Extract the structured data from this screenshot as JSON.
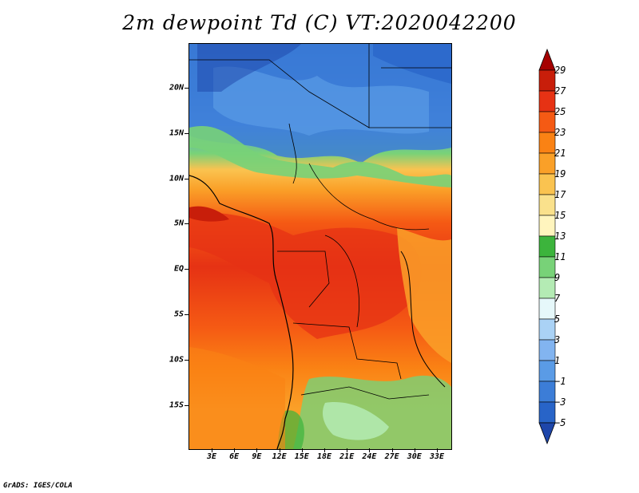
{
  "title": "2m dewpoint Td (C) VT:2020042200",
  "credit": "GrADS: IGES/COLA",
  "lat_labels": [
    "20N",
    "15N",
    "10N",
    "5N",
    "EQ",
    "5S",
    "10S",
    "15S"
  ],
  "lon_labels": [
    "3E",
    "6E",
    "9E",
    "12E",
    "15E",
    "18E",
    "21E",
    "24E",
    "27E",
    "30E",
    "33E"
  ],
  "colorbar": {
    "levels": [
      "29",
      "27",
      "25",
      "23",
      "21",
      "19",
      "17",
      "15",
      "13",
      "11",
      "9",
      "7",
      "5",
      "3",
      "1",
      "-1",
      "-3",
      "-5"
    ],
    "colors": [
      "#a50000",
      "#c81e0a",
      "#e63214",
      "#f55a14",
      "#fa8214",
      "#faa028",
      "#fac350",
      "#fae18c",
      "#fff5be",
      "#3cb43c",
      "#78d278",
      "#b4ebb4",
      "#e6f8fa",
      "#aad2f5",
      "#82b4f0",
      "#5a9be6",
      "#3c7dd7",
      "#2864c8",
      "#1e46aa"
    ]
  }
}
